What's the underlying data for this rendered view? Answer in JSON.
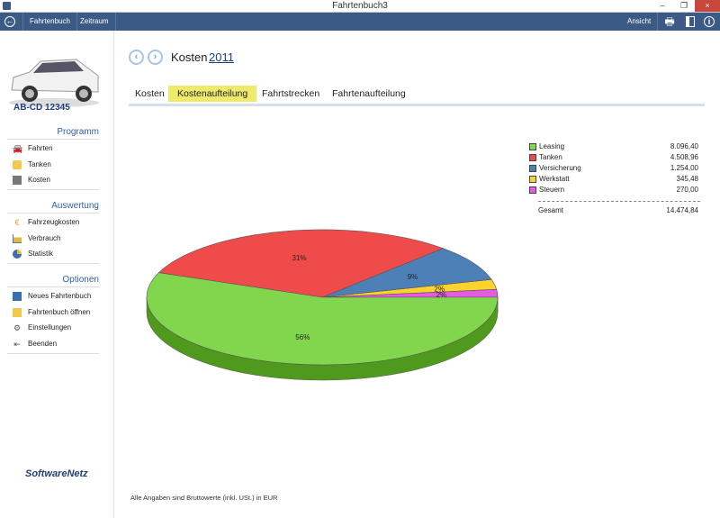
{
  "window": {
    "title": "Fahrtenbuch3",
    "minimize": "–",
    "restore": "❐",
    "close": "×"
  },
  "toolbar": {
    "back_icon": "back-icon",
    "fahrtenbuch": "Fahrtenbuch",
    "zeitraum": "Zeitraum",
    "ansicht": "Ansicht"
  },
  "sidebar": {
    "plate": "AB-CD 12345",
    "sections": [
      {
        "title": "Programm",
        "items": [
          {
            "label": "Fahrten",
            "icon": "car-icon"
          },
          {
            "label": "Tanken",
            "icon": "fuel-icon"
          },
          {
            "label": "Kosten",
            "icon": "calculator-icon"
          }
        ]
      },
      {
        "title": "Auswertung",
        "items": [
          {
            "label": "Fahrzeugkosten",
            "icon": "euro-icon"
          },
          {
            "label": "Verbrauch",
            "icon": "chart-icon"
          },
          {
            "label": "Statistik",
            "icon": "pie-icon"
          }
        ]
      },
      {
        "title": "Optionen",
        "items": [
          {
            "label": "Neues Fahrtenbuch",
            "icon": "book-icon"
          },
          {
            "label": "Fahrtenbuch öffnen",
            "icon": "folder-icon"
          },
          {
            "label": "Einstellungen",
            "icon": "gear-icon"
          },
          {
            "label": "Beenden",
            "icon": "exit-icon"
          }
        ]
      }
    ],
    "logo": "SoftwareNetz"
  },
  "main": {
    "heading": "Kosten",
    "year": "2011",
    "tabs": [
      "Kosten",
      "Kostenaufteilung",
      "Fahrtstrecken",
      "Fahrtenaufteilung"
    ],
    "active_tab": 1,
    "footnote": "Alle Angaben sind Bruttowerte (inkl. USt.) in EUR"
  },
  "chart_data": {
    "type": "pie",
    "categories": [
      "Leasing",
      "Tanken",
      "Versicherung",
      "Werkstatt",
      "Steuern"
    ],
    "values": [
      8096.4,
      4508.96,
      1254.0,
      345.48,
      270.0
    ],
    "value_labels": [
      "8.096,40",
      "4.508,96",
      "1.254,00",
      "345,48",
      "270,00"
    ],
    "percent_labels": [
      "56%",
      "31%",
      "9%",
      "2%",
      "2%"
    ],
    "colors": [
      "#82d64e",
      "#ef4b4b",
      "#4e80b8",
      "#fcd22c",
      "#e75ae5"
    ],
    "side_colors": [
      "#4f9a1c",
      "#b52a2a",
      "#2f5a8a",
      "#c49c10",
      "#a936a7"
    ],
    "total_label": "Gesamt",
    "total": "14.474,84",
    "legend": "top-right"
  }
}
